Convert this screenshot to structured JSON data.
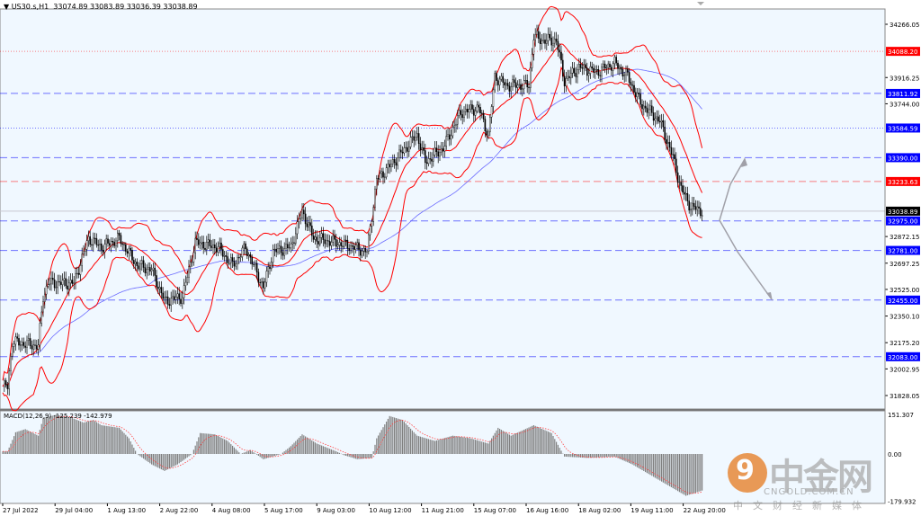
{
  "header": {
    "symbol": "US30.s,H1",
    "ohlc": "33074.89 33083.89 33036.39 33038.89"
  },
  "macd_label": "MACD(12,26,9) -125.239 -142.979",
  "watermark": {
    "logo_text": "中金网",
    "url": "CNGOLD.COM.CN",
    "subtitle": "中文财经新媒体",
    "logo_glyph": "9"
  },
  "colors": {
    "background": "#f0f8ff",
    "bands": "#ff0000",
    "ma": "#6a6aff",
    "candles": "#000000",
    "histogram": "#808080",
    "signal": "#ff4040",
    "level_blue": "#0000ff",
    "level_red": "#ff0000",
    "arrow": "#a0a0a8"
  },
  "chart_data": {
    "type": "candlestick",
    "title": "US30.s,H1",
    "price_ticks": [
      "34266.05",
      "33916.25",
      "33744.00",
      "32872.15",
      "32697.25",
      "32525.00",
      "32350.10",
      "32175.20",
      "32002.95",
      "31828.05"
    ],
    "ylim": [
      31828.05,
      34266.05
    ],
    "current_price": "33038.89",
    "levels": [
      {
        "value": "34088.20",
        "color": "red",
        "style": "dotted"
      },
      {
        "value": "33811.92",
        "color": "blue",
        "style": "dashed"
      },
      {
        "value": "33584.59",
        "color": "blue",
        "style": "dotted"
      },
      {
        "value": "33390.00",
        "color": "blue",
        "style": "dashed"
      },
      {
        "value": "33233.63",
        "color": "red",
        "style": "dashed"
      },
      {
        "value": "32975.00",
        "color": "blue",
        "style": "dashed"
      },
      {
        "value": "32781.00",
        "color": "blue",
        "style": "dashed"
      },
      {
        "value": "32455.00",
        "color": "blue",
        "style": "dashed"
      },
      {
        "value": "32083.00",
        "color": "blue",
        "style": "dashed"
      }
    ],
    "time_labels": [
      "27 Jul 2022",
      "29 Jul 04:00",
      "1 Aug 13:00",
      "2 Aug 22:00",
      "4 Aug 08:00",
      "5 Aug 17:00",
      "9 Aug 03:00",
      "10 Aug 12:00",
      "11 Aug 21:00",
      "15 Aug 07:00",
      "16 Aug 16:00",
      "18 Aug 02:00",
      "19 Aug 11:00",
      "22 Aug 20:00"
    ],
    "bar_range": [
      0,
      432
    ],
    "close": [
      [
        3,
        31887
      ],
      [
        6,
        32182
      ],
      [
        22,
        32153
      ],
      [
        25,
        32477
      ],
      [
        28,
        32566
      ],
      [
        44,
        32566
      ],
      [
        53,
        32861
      ],
      [
        61,
        32802
      ],
      [
        72,
        32861
      ],
      [
        83,
        32684
      ],
      [
        92,
        32654
      ],
      [
        100,
        32448
      ],
      [
        111,
        32477
      ],
      [
        119,
        32832
      ],
      [
        133,
        32802
      ],
      [
        142,
        32684
      ],
      [
        150,
        32802
      ],
      [
        161,
        32537
      ],
      [
        167,
        32773
      ],
      [
        178,
        32802
      ],
      [
        185,
        33038
      ],
      [
        192,
        32861
      ],
      [
        206,
        32832
      ],
      [
        217,
        32802
      ],
      [
        225,
        32773
      ],
      [
        231,
        33245
      ],
      [
        239,
        33333
      ],
      [
        256,
        33540
      ],
      [
        261,
        33363
      ],
      [
        272,
        33451
      ],
      [
        283,
        33688
      ],
      [
        294,
        33717
      ],
      [
        300,
        33540
      ],
      [
        304,
        33924
      ],
      [
        311,
        33865
      ],
      [
        325,
        33865
      ],
      [
        328,
        34189
      ],
      [
        333,
        34160
      ],
      [
        342,
        34160
      ],
      [
        347,
        33894
      ],
      [
        356,
        33983
      ],
      [
        367,
        33953
      ],
      [
        378,
        34012
      ],
      [
        386,
        33924
      ],
      [
        394,
        33747
      ],
      [
        406,
        33629
      ],
      [
        414,
        33392
      ],
      [
        419,
        33186
      ],
      [
        425,
        33068
      ],
      [
        432,
        33039
      ]
    ],
    "macd": {
      "params": "12,26,9",
      "value": -125.239,
      "signal": -142.979,
      "ylim": [
        -179.932,
        151.307
      ],
      "ticks": [
        "151.307",
        "0.00",
        "-179.932"
      ],
      "histogram": [
        [
          3,
          10
        ],
        [
          8,
          83
        ],
        [
          14,
          95
        ],
        [
          22,
          70
        ],
        [
          25,
          137
        ],
        [
          33,
          150
        ],
        [
          42,
          140
        ],
        [
          50,
          120
        ],
        [
          56,
          130
        ],
        [
          61,
          110
        ],
        [
          72,
          100
        ],
        [
          78,
          60
        ],
        [
          83,
          0
        ],
        [
          92,
          -40
        ],
        [
          100,
          -65
        ],
        [
          108,
          -40
        ],
        [
          117,
          0
        ],
        [
          122,
          80
        ],
        [
          131,
          75
        ],
        [
          139,
          50
        ],
        [
          147,
          0
        ],
        [
          153,
          15
        ],
        [
          161,
          -20
        ],
        [
          172,
          0
        ],
        [
          178,
          30
        ],
        [
          185,
          75
        ],
        [
          194,
          40
        ],
        [
          206,
          10
        ],
        [
          211,
          -5
        ],
        [
          219,
          -20
        ],
        [
          228,
          -15
        ],
        [
          231,
          60
        ],
        [
          239,
          145
        ],
        [
          247,
          130
        ],
        [
          256,
          70
        ],
        [
          267,
          50
        ],
        [
          278,
          70
        ],
        [
          289,
          60
        ],
        [
          300,
          40
        ],
        [
          306,
          100
        ],
        [
          314,
          70
        ],
        [
          328,
          110
        ],
        [
          339,
          80
        ],
        [
          347,
          -10
        ],
        [
          361,
          -15
        ],
        [
          378,
          -10
        ],
        [
          389,
          -40
        ],
        [
          400,
          -80
        ],
        [
          411,
          -120
        ],
        [
          422,
          -160
        ],
        [
          432,
          -140
        ]
      ]
    }
  }
}
